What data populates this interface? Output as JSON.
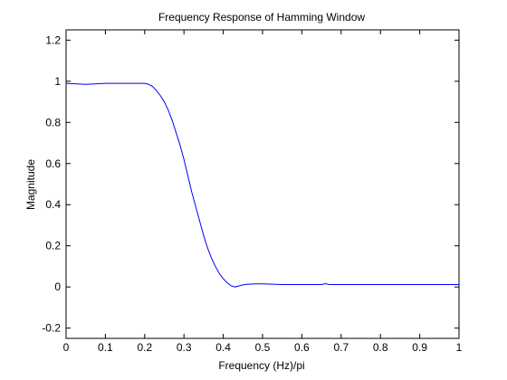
{
  "chart_data": {
    "type": "line",
    "title": "Frequency Response of Hamming Window",
    "xlabel": "Frequency (Hz)/pi",
    "ylabel": "Magnitude",
    "xlim": [
      0,
      1
    ],
    "ylim": [
      -0.25,
      1.25
    ],
    "x_ticks": [
      "0",
      "0.1",
      "0.2",
      "0.3",
      "0.4",
      "0.5",
      "0.6",
      "0.7",
      "0.8",
      "0.9",
      "1"
    ],
    "y_ticks": [
      "-0.2",
      "0",
      "0.2",
      "0.4",
      "0.6",
      "0.8",
      "1",
      "1.2"
    ],
    "grid": false,
    "series": [
      {
        "color": "#0000ff",
        "x": [
          0,
          0.05,
          0.1,
          0.15,
          0.2,
          0.21,
          0.22,
          0.23,
          0.24,
          0.25,
          0.26,
          0.27,
          0.28,
          0.29,
          0.3,
          0.31,
          0.32,
          0.33,
          0.34,
          0.35,
          0.36,
          0.37,
          0.38,
          0.39,
          0.4,
          0.41,
          0.42,
          0.43,
          0.44,
          0.45,
          0.46,
          0.48,
          0.5,
          0.55,
          0.6,
          0.65,
          0.66,
          0.67,
          0.7,
          0.8,
          0.9,
          1
        ],
        "y": [
          0.99,
          0.985,
          0.99,
          0.99,
          0.99,
          0.985,
          0.975,
          0.955,
          0.93,
          0.9,
          0.86,
          0.81,
          0.75,
          0.69,
          0.62,
          0.54,
          0.46,
          0.39,
          0.32,
          0.25,
          0.19,
          0.14,
          0.1,
          0.065,
          0.04,
          0.02,
          0.006,
          0.0,
          0.005,
          0.01,
          0.013,
          0.015,
          0.015,
          0.012,
          0.012,
          0.012,
          0.016,
          0.012,
          0.012,
          0.012,
          0.012,
          0.012
        ]
      }
    ]
  }
}
